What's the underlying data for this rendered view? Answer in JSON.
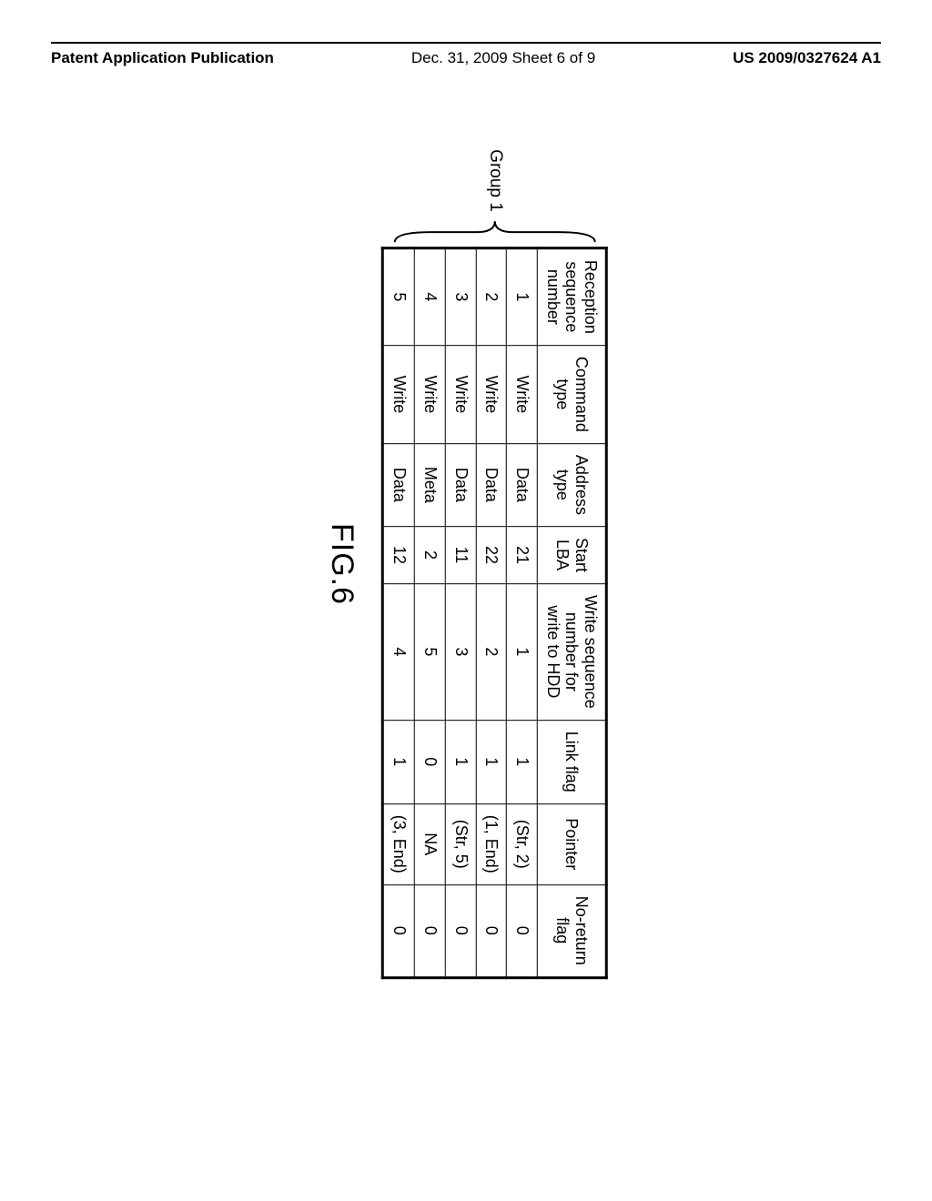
{
  "header": {
    "left": "Patent Application Publication",
    "mid": "Dec. 31, 2009  Sheet 6 of 9",
    "right": "US 2009/0327624 A1"
  },
  "group_label": "Group 1",
  "figure_label": "FIG.6",
  "table": {
    "columns": [
      "Reception\nsequence\nnumber",
      "Command\ntype",
      "Address\ntype",
      "Start\nLBA",
      "Write sequence\nnumber for\nwrite to HDD",
      "Link flag",
      "Pointer",
      "No-return\nflag"
    ],
    "rows": [
      [
        "1",
        "Write",
        "Data",
        "21",
        "1",
        "1",
        "(Str, 2)",
        "0"
      ],
      [
        "2",
        "Write",
        "Data",
        "22",
        "2",
        "1",
        "(1, End)",
        "0"
      ],
      [
        "3",
        "Write",
        "Data",
        "11",
        "3",
        "1",
        "(Str, 5)",
        "0"
      ],
      [
        "4",
        "Write",
        "Meta",
        "2",
        "5",
        "0",
        "NA",
        "0"
      ],
      [
        "5",
        "Write",
        "Data",
        "12",
        "4",
        "1",
        "(3, End)",
        "0"
      ]
    ]
  },
  "style": {
    "page_bg": "#ffffff",
    "border_color": "#000000",
    "text_color": "#000000",
    "header_font_size": 17,
    "cell_font_size": 18,
    "fig_font_size": 34,
    "brace_height": 230
  }
}
